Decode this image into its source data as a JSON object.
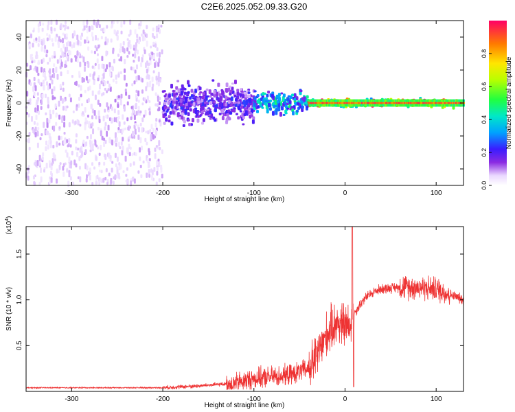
{
  "title": "C2E6.2025.052.09.33.G20",
  "chart_data": [
    {
      "type": "heatmap",
      "xlabel": "Height of straight line (km)",
      "ylabel": "Frequency (Hz)",
      "xlim": [
        -350,
        130
      ],
      "ylim": [
        -50,
        50
      ],
      "xticks": [
        -300,
        -200,
        -100,
        0,
        100
      ],
      "yticks": [
        -40,
        -20,
        0,
        20,
        40
      ],
      "colorbar": {
        "label": "Normalized spectral amplitude",
        "range": [
          0,
          1
        ],
        "ticks": [
          0.0,
          0.2,
          0.4,
          0.6,
          0.8
        ],
        "tick_labels": [
          "0.0",
          "0.2",
          "0.4",
          "0.6",
          "0.8"
        ]
      },
      "regions": [
        {
          "x": [
            -350,
            -200
          ],
          "freq_spread": 50,
          "amplitude": 0.08
        },
        {
          "x": [
            -200,
            -100
          ],
          "freq_spread": 18,
          "amplitude": 0.2
        },
        {
          "x": [
            -100,
            -40
          ],
          "freq_spread": 10,
          "amplitude": 0.4
        },
        {
          "x": [
            -40,
            130
          ],
          "freq_spread": 3,
          "amplitude": 0.9
        }
      ]
    },
    {
      "type": "line",
      "xlabel": "Height of straight line (km)",
      "ylabel": "SNR (10 * v/v)",
      "y_multiplier": "(x10",
      "y_multiplier_exp": "4",
      "y_multiplier_close": ")",
      "xlim": [
        -350,
        130
      ],
      "ylim": [
        0,
        1.8
      ],
      "xticks": [
        -300,
        -200,
        -100,
        0,
        100
      ],
      "yticks": [
        0.5,
        1.0,
        1.5
      ],
      "ytick_labels": [
        "0.5",
        "1.0",
        "1.5"
      ],
      "color": "#ee3333",
      "trend": {
        "x": [
          -350,
          -200,
          -160,
          -120,
          -100,
          -80,
          -60,
          -40,
          -30,
          -20,
          -10,
          0,
          5,
          10,
          20,
          30,
          40,
          60,
          80,
          100,
          115,
          130
        ],
        "y": [
          0.04,
          0.04,
          0.06,
          0.09,
          0.14,
          0.16,
          0.18,
          0.25,
          0.4,
          0.62,
          0.75,
          0.72,
          0.7,
          0.85,
          1.0,
          1.08,
          1.12,
          1.14,
          1.14,
          1.12,
          1.06,
          1.0
        ]
      },
      "peak": {
        "x": 8,
        "y": 1.8
      }
    }
  ]
}
